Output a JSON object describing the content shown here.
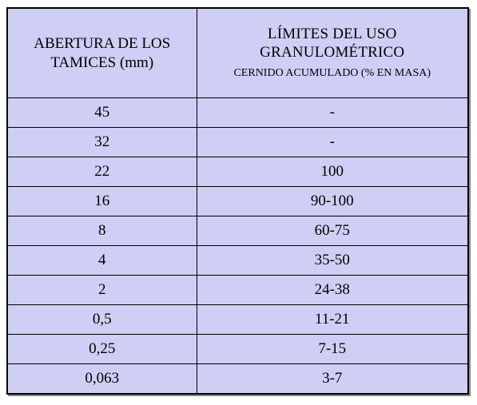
{
  "table": {
    "header": {
      "col1": "ABERTURA DE LOS TAMICES (mm)",
      "col2_title": "LÍMITES DEL USO GRANULOMÉTRICO",
      "col2_subtitle": "CERNIDO ACUMULADO (% EN MASA)"
    },
    "rows": [
      {
        "sieve": "45",
        "limit": "-"
      },
      {
        "sieve": "32",
        "limit": "-"
      },
      {
        "sieve": "22",
        "limit": "100"
      },
      {
        "sieve": "16",
        "limit": "90-100"
      },
      {
        "sieve": "8",
        "limit": "60-75"
      },
      {
        "sieve": "4",
        "limit": "35-50"
      },
      {
        "sieve": "2",
        "limit": "24-38"
      },
      {
        "sieve": "0,5",
        "limit": "11-21"
      },
      {
        "sieve": "0,25",
        "limit": "7-15"
      },
      {
        "sieve": "0,063",
        "limit": "3-7"
      }
    ]
  }
}
